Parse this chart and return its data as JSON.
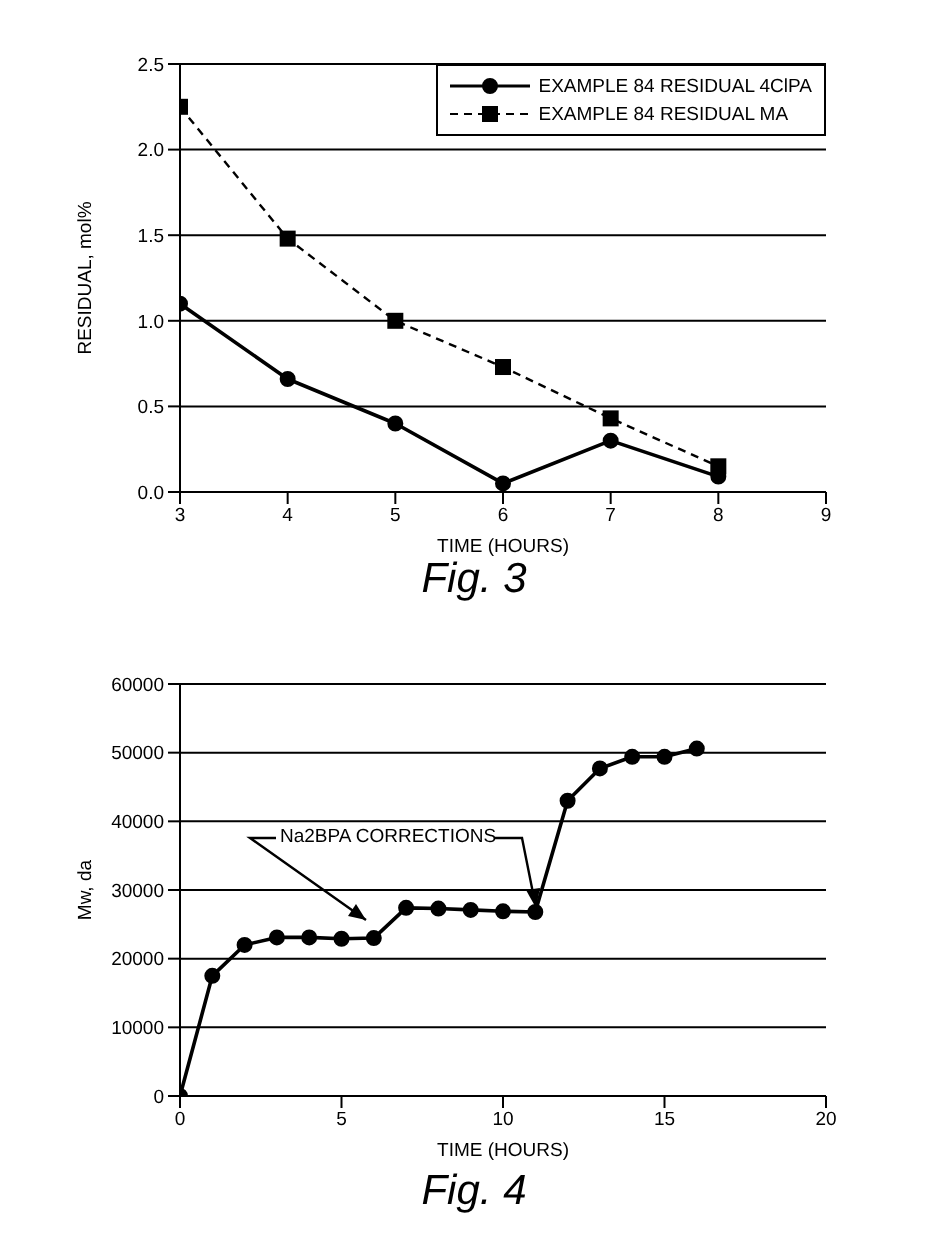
{
  "chart_data": [
    {
      "type": "line",
      "xlabel": "TIME (HOURS)",
      "ylabel": "RESIDUAL, mol%",
      "annotations": [
        "Fig. 3"
      ],
      "x": [
        3,
        4,
        5,
        6,
        7,
        8
      ],
      "series": [
        {
          "name": "EXAMPLE 84 RESIDUAL 4ClPA",
          "color": "#000000",
          "marker": "circle",
          "line_style": "solid",
          "values": [
            1.1,
            0.66,
            0.4,
            0.05,
            0.3,
            0.09
          ]
        },
        {
          "name": "EXAMPLE 84 RESIDUAL MA",
          "color": "#000000",
          "marker": "square",
          "line_style": "dashed",
          "values": [
            2.25,
            1.48,
            1.0,
            0.73,
            0.43,
            0.15
          ]
        }
      ],
      "xlim": [
        3,
        9
      ],
      "xticks": [
        3,
        4,
        5,
        6,
        7,
        8,
        9
      ],
      "ylim": [
        0,
        2.5
      ],
      "yticks": [
        {
          "value": 0,
          "label": "0.0"
        },
        {
          "value": 0.5,
          "label": "0.5"
        },
        {
          "value": 1,
          "label": "1.0"
        },
        {
          "value": 1.5,
          "label": "1.5"
        },
        {
          "value": 2,
          "label": "2.0"
        },
        {
          "value": 2.5,
          "label": "2.5"
        }
      ],
      "grid": "y",
      "legend": "top right"
    },
    {
      "type": "line",
      "xlabel": "TIME (HOURS)",
      "ylabel": "Mw, da",
      "annotations": [
        "Na2BPA CORRECTIONS",
        "Fig. 4"
      ],
      "x": [
        0,
        1,
        2,
        3,
        4,
        5,
        6,
        7,
        8,
        9,
        10,
        11,
        12,
        13,
        14,
        15,
        16
      ],
      "series": [
        {
          "color": "#000000",
          "values": [
            0,
            17500,
            22000,
            23100,
            23100,
            22900,
            23000,
            27400,
            27300,
            27100,
            26900,
            26800,
            43000,
            47700,
            49400,
            49400,
            50600
          ]
        }
      ],
      "xlim": [
        0,
        20
      ],
      "xticks": [
        0,
        5,
        10,
        15,
        20
      ],
      "ylim": [
        0,
        60000
      ],
      "yticks": [
        0,
        10000,
        20000,
        30000,
        40000,
        50000,
        60000
      ],
      "grid": "y",
      "marker": "circle",
      "line_style": "solid",
      "legend": false
    }
  ]
}
